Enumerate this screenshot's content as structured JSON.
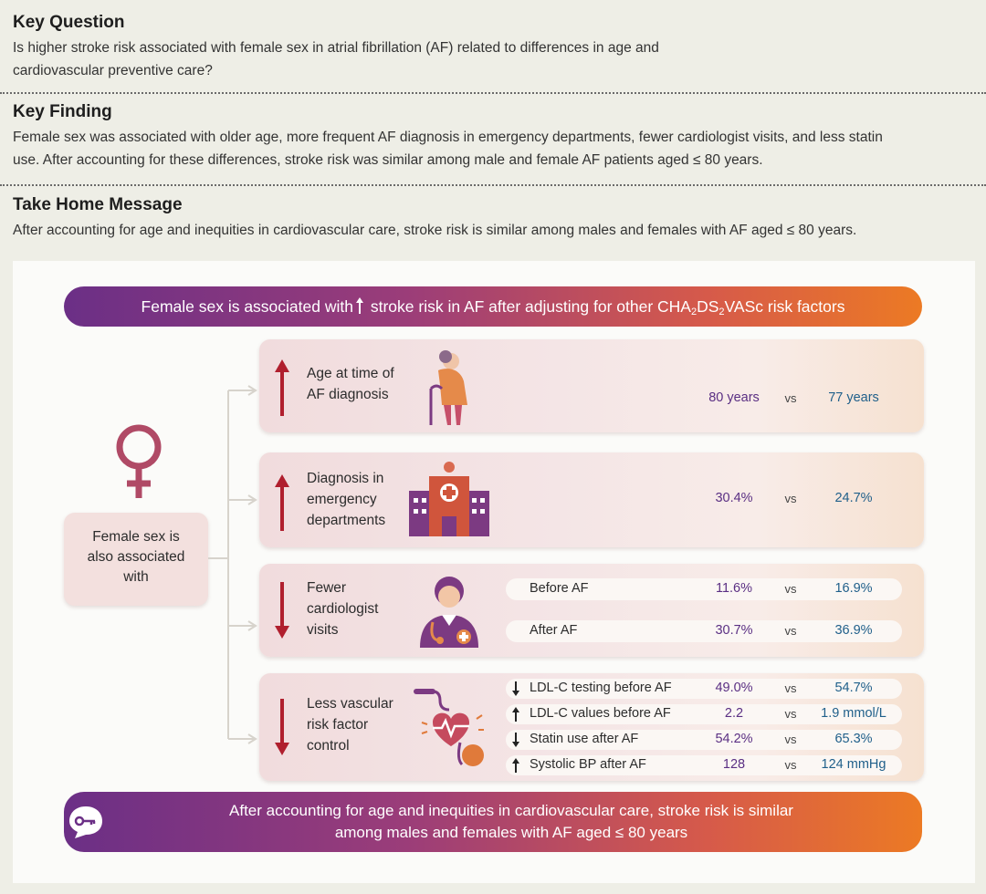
{
  "key_question": {
    "heading": "Key Question",
    "line1": "Is higher stroke risk associated with female sex in atrial fibrillation (AF) related to differences in age and",
    "line2": "cardiovascular preventive care?"
  },
  "key_finding": {
    "heading": "Key Finding",
    "line1": "Female sex was associated with older age, more frequent AF diagnosis in emergency departments, fewer cardiologist visits, and less statin",
    "line2": "use. After accounting for these differences, stroke risk was similar among male and female AF patients aged ≤ 80 years."
  },
  "take_home": {
    "heading": "Take Home Message",
    "line1": "After accounting for age and inequities in cardiovascular care, stroke risk is similar among males and females with AF aged ≤ 80 years."
  },
  "banner": {
    "part1": "Female sex is associated with",
    "part2": " stroke risk in AF after adjusting for other CHA",
    "sub1": "2",
    "part3": "DS",
    "sub2": "2",
    "part4": "VASc risk factors"
  },
  "side": {
    "label_line1": "Female sex is",
    "label_line2": "also associated",
    "label_line3": "with"
  },
  "cards": {
    "age": {
      "label_line1": "Age at time of",
      "label_line2": "AF diagnosis",
      "female": "80 years",
      "vs": "vs",
      "male": "77 years"
    },
    "ed": {
      "label_line1": "Diagnosis in",
      "label_line2": "emergency",
      "label_line3": "departments",
      "female": "30.4%",
      "vs": "vs",
      "male": "24.7%"
    },
    "cardio": {
      "label_line1": "Fewer",
      "label_line2": "cardiologist",
      "label_line3": "visits",
      "rows": [
        {
          "label": "Before AF",
          "female": "11.6%",
          "vs": "vs",
          "male": "16.9%"
        },
        {
          "label": "After AF",
          "female": "30.7%",
          "vs": "vs",
          "male": "36.9%"
        }
      ]
    },
    "vascular": {
      "label_line1": "Less vascular",
      "label_line2": "risk factor",
      "label_line3": "control",
      "rows": [
        {
          "label": "LDL-C testing before AF",
          "female": "49.0%",
          "vs": "vs",
          "male": "54.7%"
        },
        {
          "label": "LDL-C values before AF",
          "female": "2.2",
          "vs": "vs",
          "male": "1.9 mmol/L"
        },
        {
          "label": "Statin use after AF",
          "female": "54.2%",
          "vs": "vs",
          "male": "65.3%"
        },
        {
          "label": "Systolic BP after AF",
          "female": "128",
          "vs": "vs",
          "male": "124 mmHg"
        }
      ]
    }
  },
  "footer": {
    "line1": "After accounting for age and inequities in cardiovascular care, stroke risk is similar",
    "line2": "among males and females with AF aged ≤ 80 years"
  },
  "colors": {
    "female": "#8e3f78",
    "male": "#1f5f8a",
    "arrow_red": "#b01f2e",
    "banner_start": "#6b2f86",
    "banner_end": "#ec7a24"
  }
}
